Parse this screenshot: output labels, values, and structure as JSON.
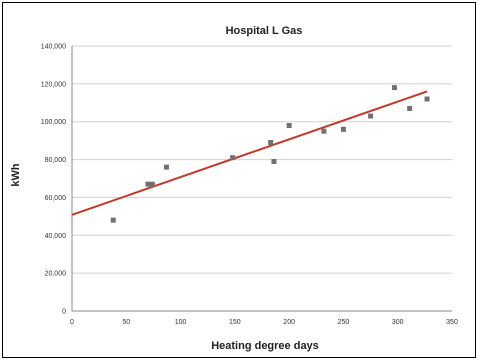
{
  "chart_data": {
    "type": "scatter",
    "title": "Hospital L Gas",
    "xlabel": "Heating degree days",
    "ylabel": "kWh",
    "xlim": [
      0,
      350
    ],
    "ylim": [
      0,
      140000
    ],
    "x_ticks": [
      0,
      50,
      100,
      150,
      200,
      250,
      300,
      350
    ],
    "y_ticks": [
      0,
      20000,
      40000,
      60000,
      80000,
      100000,
      120000,
      140000
    ],
    "x_tick_labels": [
      "0",
      "50",
      "100",
      "150",
      "200",
      "250",
      "300",
      "350"
    ],
    "y_tick_labels": [
      "0",
      "20,000",
      "40,000",
      "60,000",
      "80,000",
      "100,000",
      "120,000",
      "140,000"
    ],
    "grid": "horizontal",
    "series": [
      {
        "points": [
          {
            "x": 38,
            "y": 48000
          },
          {
            "x": 70,
            "y": 67000
          },
          {
            "x": 74,
            "y": 67000
          },
          {
            "x": 87,
            "y": 76000
          },
          {
            "x": 148,
            "y": 81000
          },
          {
            "x": 183,
            "y": 89000
          },
          {
            "x": 186,
            "y": 79000
          },
          {
            "x": 200,
            "y": 98000
          },
          {
            "x": 232,
            "y": 95000
          },
          {
            "x": 250,
            "y": 96000
          },
          {
            "x": 275,
            "y": 103000
          },
          {
            "x": 297,
            "y": 118000
          },
          {
            "x": 311,
            "y": 107000
          },
          {
            "x": 327,
            "y": 112000
          }
        ]
      }
    ],
    "trendline": {
      "x": [
        0,
        327
      ],
      "y": [
        50800,
        116000
      ]
    },
    "colors": {
      "marker": "#707070",
      "trendline": "#c0392b",
      "grid": "#d0d0d0"
    }
  }
}
